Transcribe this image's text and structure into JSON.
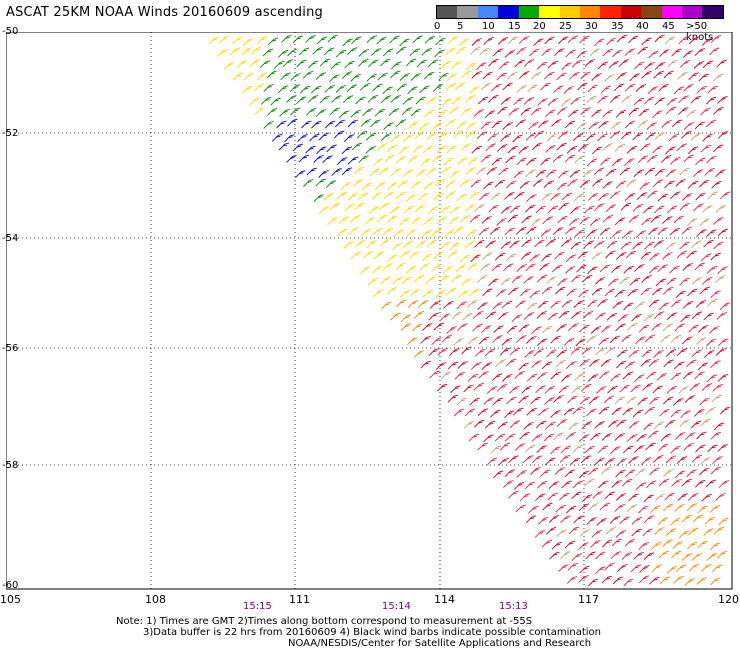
{
  "title": "ASCAT 25KM NOAA Winds 20160609 ascending",
  "legend": {
    "colors": [
      "#555555",
      "#999999",
      "#4488ff",
      "#0000dd",
      "#00aa00",
      "#ffff00",
      "#ffcc00",
      "#ff8800",
      "#ff2200",
      "#cc0000",
      "#8b4513",
      "#ff00ff",
      "#aa00cc",
      "#330066"
    ],
    "labels": [
      "0",
      "5",
      "10",
      "15",
      "20",
      "25",
      "30",
      "35",
      "40",
      "45",
      ">50 knots"
    ]
  },
  "axes": {
    "lat_labels": [
      "-50",
      "-52",
      "-54",
      "-56",
      "-58",
      "-60"
    ],
    "lon_labels": [
      "105",
      "108",
      "111",
      "114",
      "117",
      "120"
    ]
  },
  "time_labels": [
    "15:15",
    "15:14",
    "15:13"
  ],
  "notes": [
    "Note: 1) Times are GMT 2)Times along bottom correspond to measurement at -55S",
    "3)Data buffer is 22 hrs from 20160609 4) Black wind barbs indicate possible contamination",
    "NOAA/NESDIS/Center for Satellite Applications and Research"
  ]
}
